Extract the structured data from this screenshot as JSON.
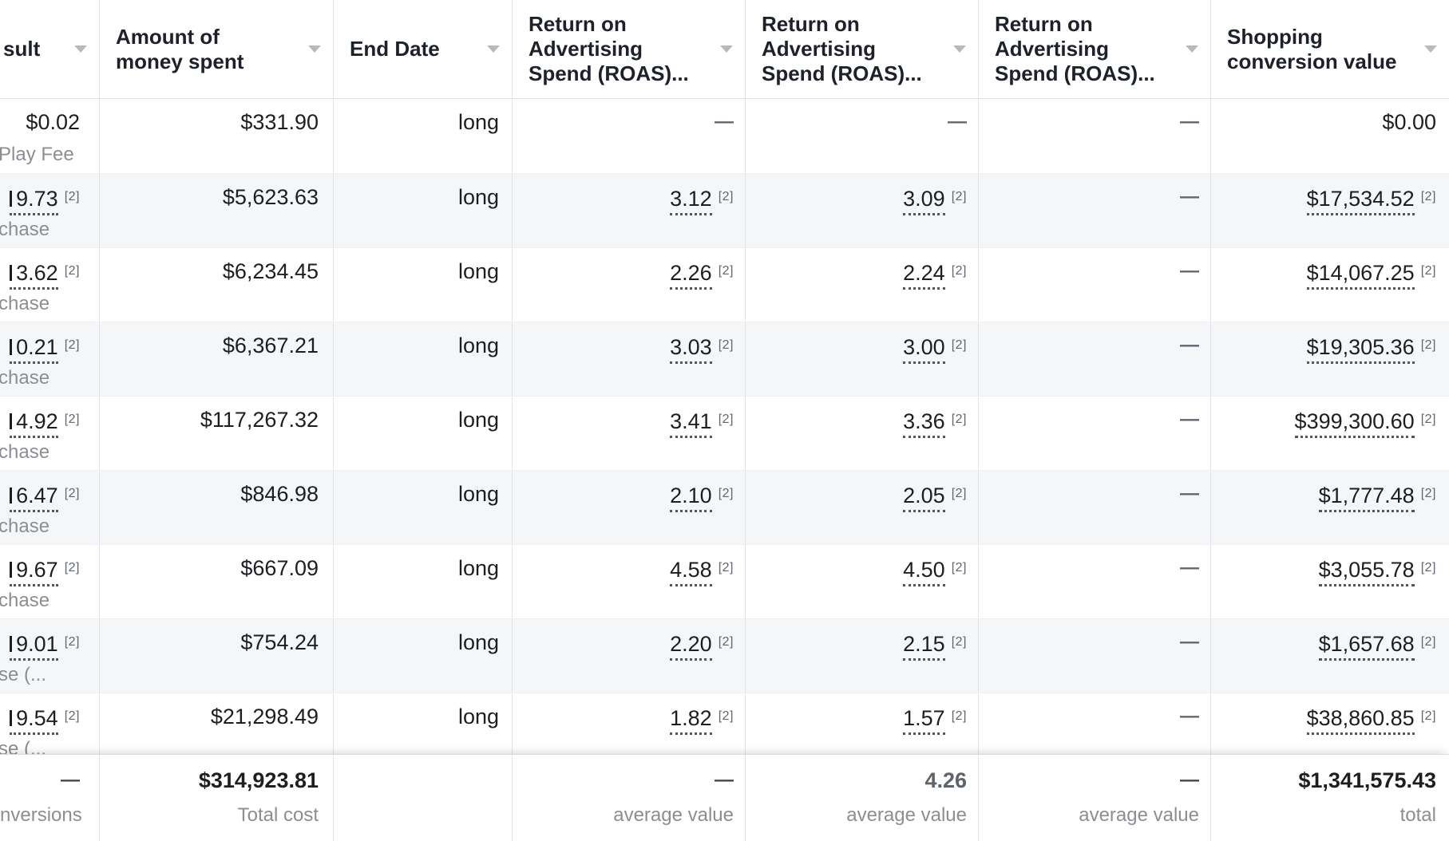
{
  "footnote_marker": "[2]",
  "header": {
    "columns": [
      {
        "id": "result",
        "label": "sult"
      },
      {
        "id": "spent",
        "label": "Amount of money spent"
      },
      {
        "id": "end_date",
        "label": "End Date"
      },
      {
        "id": "roas_1",
        "label": "Return on Advertising Spend (ROAS)..."
      },
      {
        "id": "roas_2",
        "label": "Return on Advertising Spend (ROAS)..."
      },
      {
        "id": "roas_3",
        "label": "Return on Advertising Spend (ROAS)..."
      },
      {
        "id": "shopping",
        "label": "Shopping conversion value"
      }
    ]
  },
  "rows": [
    {
      "result": "$0.02",
      "result_sub": "Play Fee",
      "spent": "$331.90",
      "end_date": "long",
      "roas_1": "—",
      "roas_2": "—",
      "roas_3": "—",
      "shopping": "$0.00"
    },
    {
      "result": "9.73",
      "result_sub": "chase",
      "spent": "$5,623.63",
      "end_date": "long",
      "roas_1": "3.12",
      "roas_2": "3.09",
      "roas_3": "—",
      "shopping": "$17,534.52"
    },
    {
      "result": "3.62",
      "result_sub": "chase",
      "spent": "$6,234.45",
      "end_date": "long",
      "roas_1": "2.26",
      "roas_2": "2.24",
      "roas_3": "—",
      "shopping": "$14,067.25"
    },
    {
      "result": "0.21",
      "result_sub": "chase",
      "spent": "$6,367.21",
      "end_date": "long",
      "roas_1": "3.03",
      "roas_2": "3.00",
      "roas_3": "—",
      "shopping": "$19,305.36"
    },
    {
      "result": "4.92",
      "result_sub": "chase",
      "spent": "$117,267.32",
      "end_date": "long",
      "roas_1": "3.41",
      "roas_2": "3.36",
      "roas_3": "—",
      "shopping": "$399,300.60"
    },
    {
      "result": "6.47",
      "result_sub": "chase",
      "spent": "$846.98",
      "end_date": "long",
      "roas_1": "2.10",
      "roas_2": "2.05",
      "roas_3": "—",
      "shopping": "$1,777.48"
    },
    {
      "result": "9.67",
      "result_sub": "chase",
      "spent": "$667.09",
      "end_date": "long",
      "roas_1": "4.58",
      "roas_2": "4.50",
      "roas_3": "—",
      "shopping": "$3,055.78"
    },
    {
      "result": "9.01",
      "result_sub": "se (...",
      "spent": "$754.24",
      "end_date": "long",
      "roas_1": "2.20",
      "roas_2": "2.15",
      "roas_3": "—",
      "shopping": "$1,657.68"
    },
    {
      "result": "9.54",
      "result_sub": "se (...",
      "spent": "$21,298.49",
      "end_date": "long",
      "roas_1": "1.82",
      "roas_2": "1.57",
      "roas_3": "—",
      "shopping": "$38,860.85"
    }
  ],
  "totals": {
    "result": "—",
    "result_sub": "nversions",
    "spent": "$314,923.81",
    "spent_sub": "Total cost",
    "roas_1": "—",
    "roas_1_sub": "average value",
    "roas_2": "4.26",
    "roas_2_sub": "average value",
    "roas_3": "—",
    "roas_3_sub": "average value",
    "shopping": "$1,341,575.43",
    "shopping_sub": "total"
  },
  "colors": {
    "text_primary": "#1c1e21",
    "text_secondary": "#8b8e93",
    "row_alt_background": "#f5f6f7",
    "divider": "#e2e4e8",
    "dotted_underline": "#53565b",
    "sort_icon": "#b6b9be",
    "totals_average_value": "#5e636b"
  }
}
